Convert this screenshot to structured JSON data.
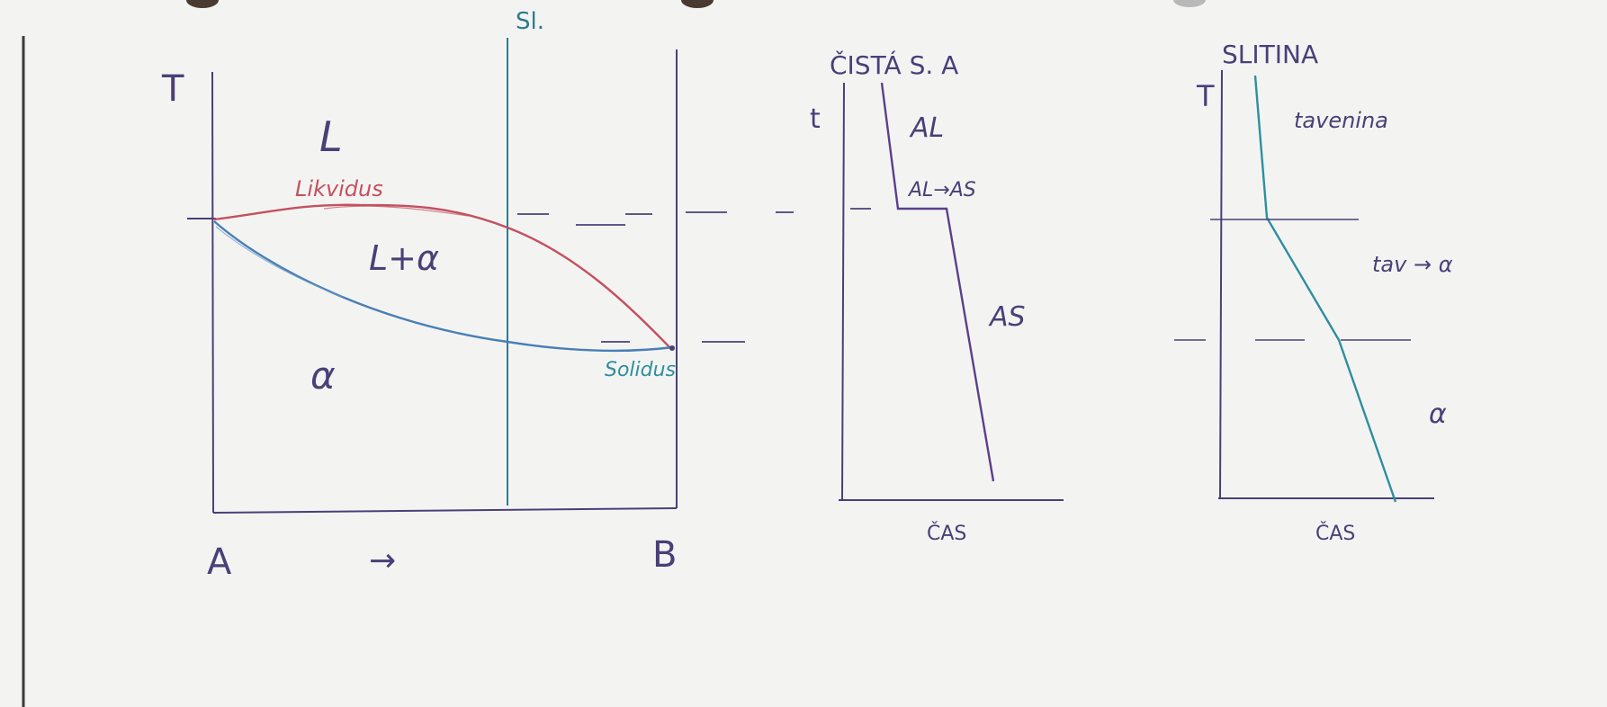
{
  "phase_diagram": {
    "axis_y_label": "T",
    "region_liquid": "L",
    "region_two_phase": "L+α",
    "region_solid": "α",
    "liquidus_label": "Likvidus",
    "solidus_label": "Solidus",
    "composition_line_label": "Sl.",
    "left_component": "A",
    "right_component": "B",
    "direction_arrow": "→"
  },
  "pure_metal_cooling": {
    "title": "ČISTÁ S. A",
    "axis_y_label": "t",
    "segment_liquid": "AL",
    "segment_transform": "AL→AS",
    "segment_solid": "AS",
    "axis_x_label": "ČAS"
  },
  "alloy_cooling": {
    "title": "SLITINA",
    "axis_y_label": "T",
    "segment_liquid": "tavenina",
    "segment_transform": "tav → α",
    "segment_solid": "α",
    "axis_x_label": "ČAS"
  },
  "colors": {
    "paper": "#f3f4f2",
    "ink_purple": "#4a3f78",
    "ink_blue": "#3f7fa6",
    "ink_red": "#c45060",
    "ink_teal": "#2e8e9e",
    "margin_line": "#3a3a3a"
  }
}
